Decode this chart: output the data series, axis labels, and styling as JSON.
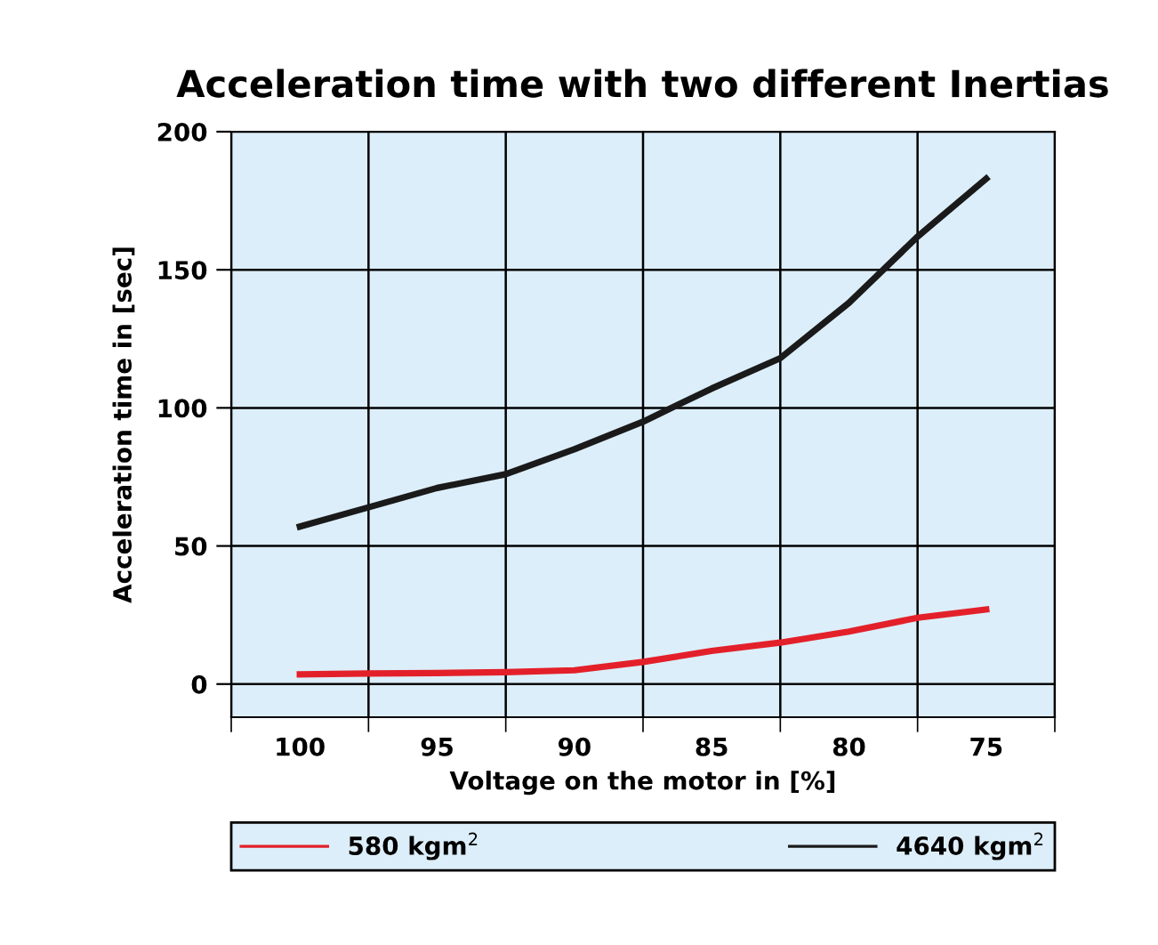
{
  "chart_data": {
    "type": "line",
    "title": "Acceleration time with two different Inertias",
    "xlabel": "Voltage on the motor in [%]",
    "ylabel": "Acceleration time in [sec]",
    "x": [
      100,
      97.5,
      95,
      92.5,
      90,
      87.5,
      85,
      82.5,
      80,
      77.5,
      75
    ],
    "series": [
      {
        "name": "580 kgm$^{2}$",
        "color": "#e3202a",
        "values": [
          3.5,
          3.8,
          4,
          4.3,
          5,
          8,
          12,
          15,
          19,
          24,
          27
        ]
      },
      {
        "name": "4640 kgm$^{2}$",
        "color": "#1a1a1a",
        "values": [
          57,
          64,
          71,
          76,
          85,
          95,
          107,
          118,
          138,
          162,
          183
        ]
      }
    ],
    "xlim": [
      102.5,
      72.5
    ],
    "xticks": [
      {
        "value": 102.5,
        "label": null
      },
      {
        "value": 100,
        "label": "100"
      },
      {
        "value": 97.5,
        "label": null
      },
      {
        "value": 95,
        "label": "95"
      },
      {
        "value": 92.5,
        "label": null
      },
      {
        "value": 90,
        "label": "90"
      },
      {
        "value": 87.5,
        "label": null
      },
      {
        "value": 85,
        "label": "85"
      },
      {
        "value": 82.5,
        "label": null
      },
      {
        "value": 80,
        "label": "80"
      },
      {
        "value": 77.5,
        "label": null
      },
      {
        "value": 75,
        "label": "75"
      },
      {
        "value": 72.5,
        "label": null
      }
    ],
    "ylim": [
      -12,
      200
    ],
    "yticks": [
      0,
      50,
      100,
      150,
      200
    ],
    "grid": true,
    "legend": "bottom",
    "marker": "none",
    "line_style": "solid"
  }
}
